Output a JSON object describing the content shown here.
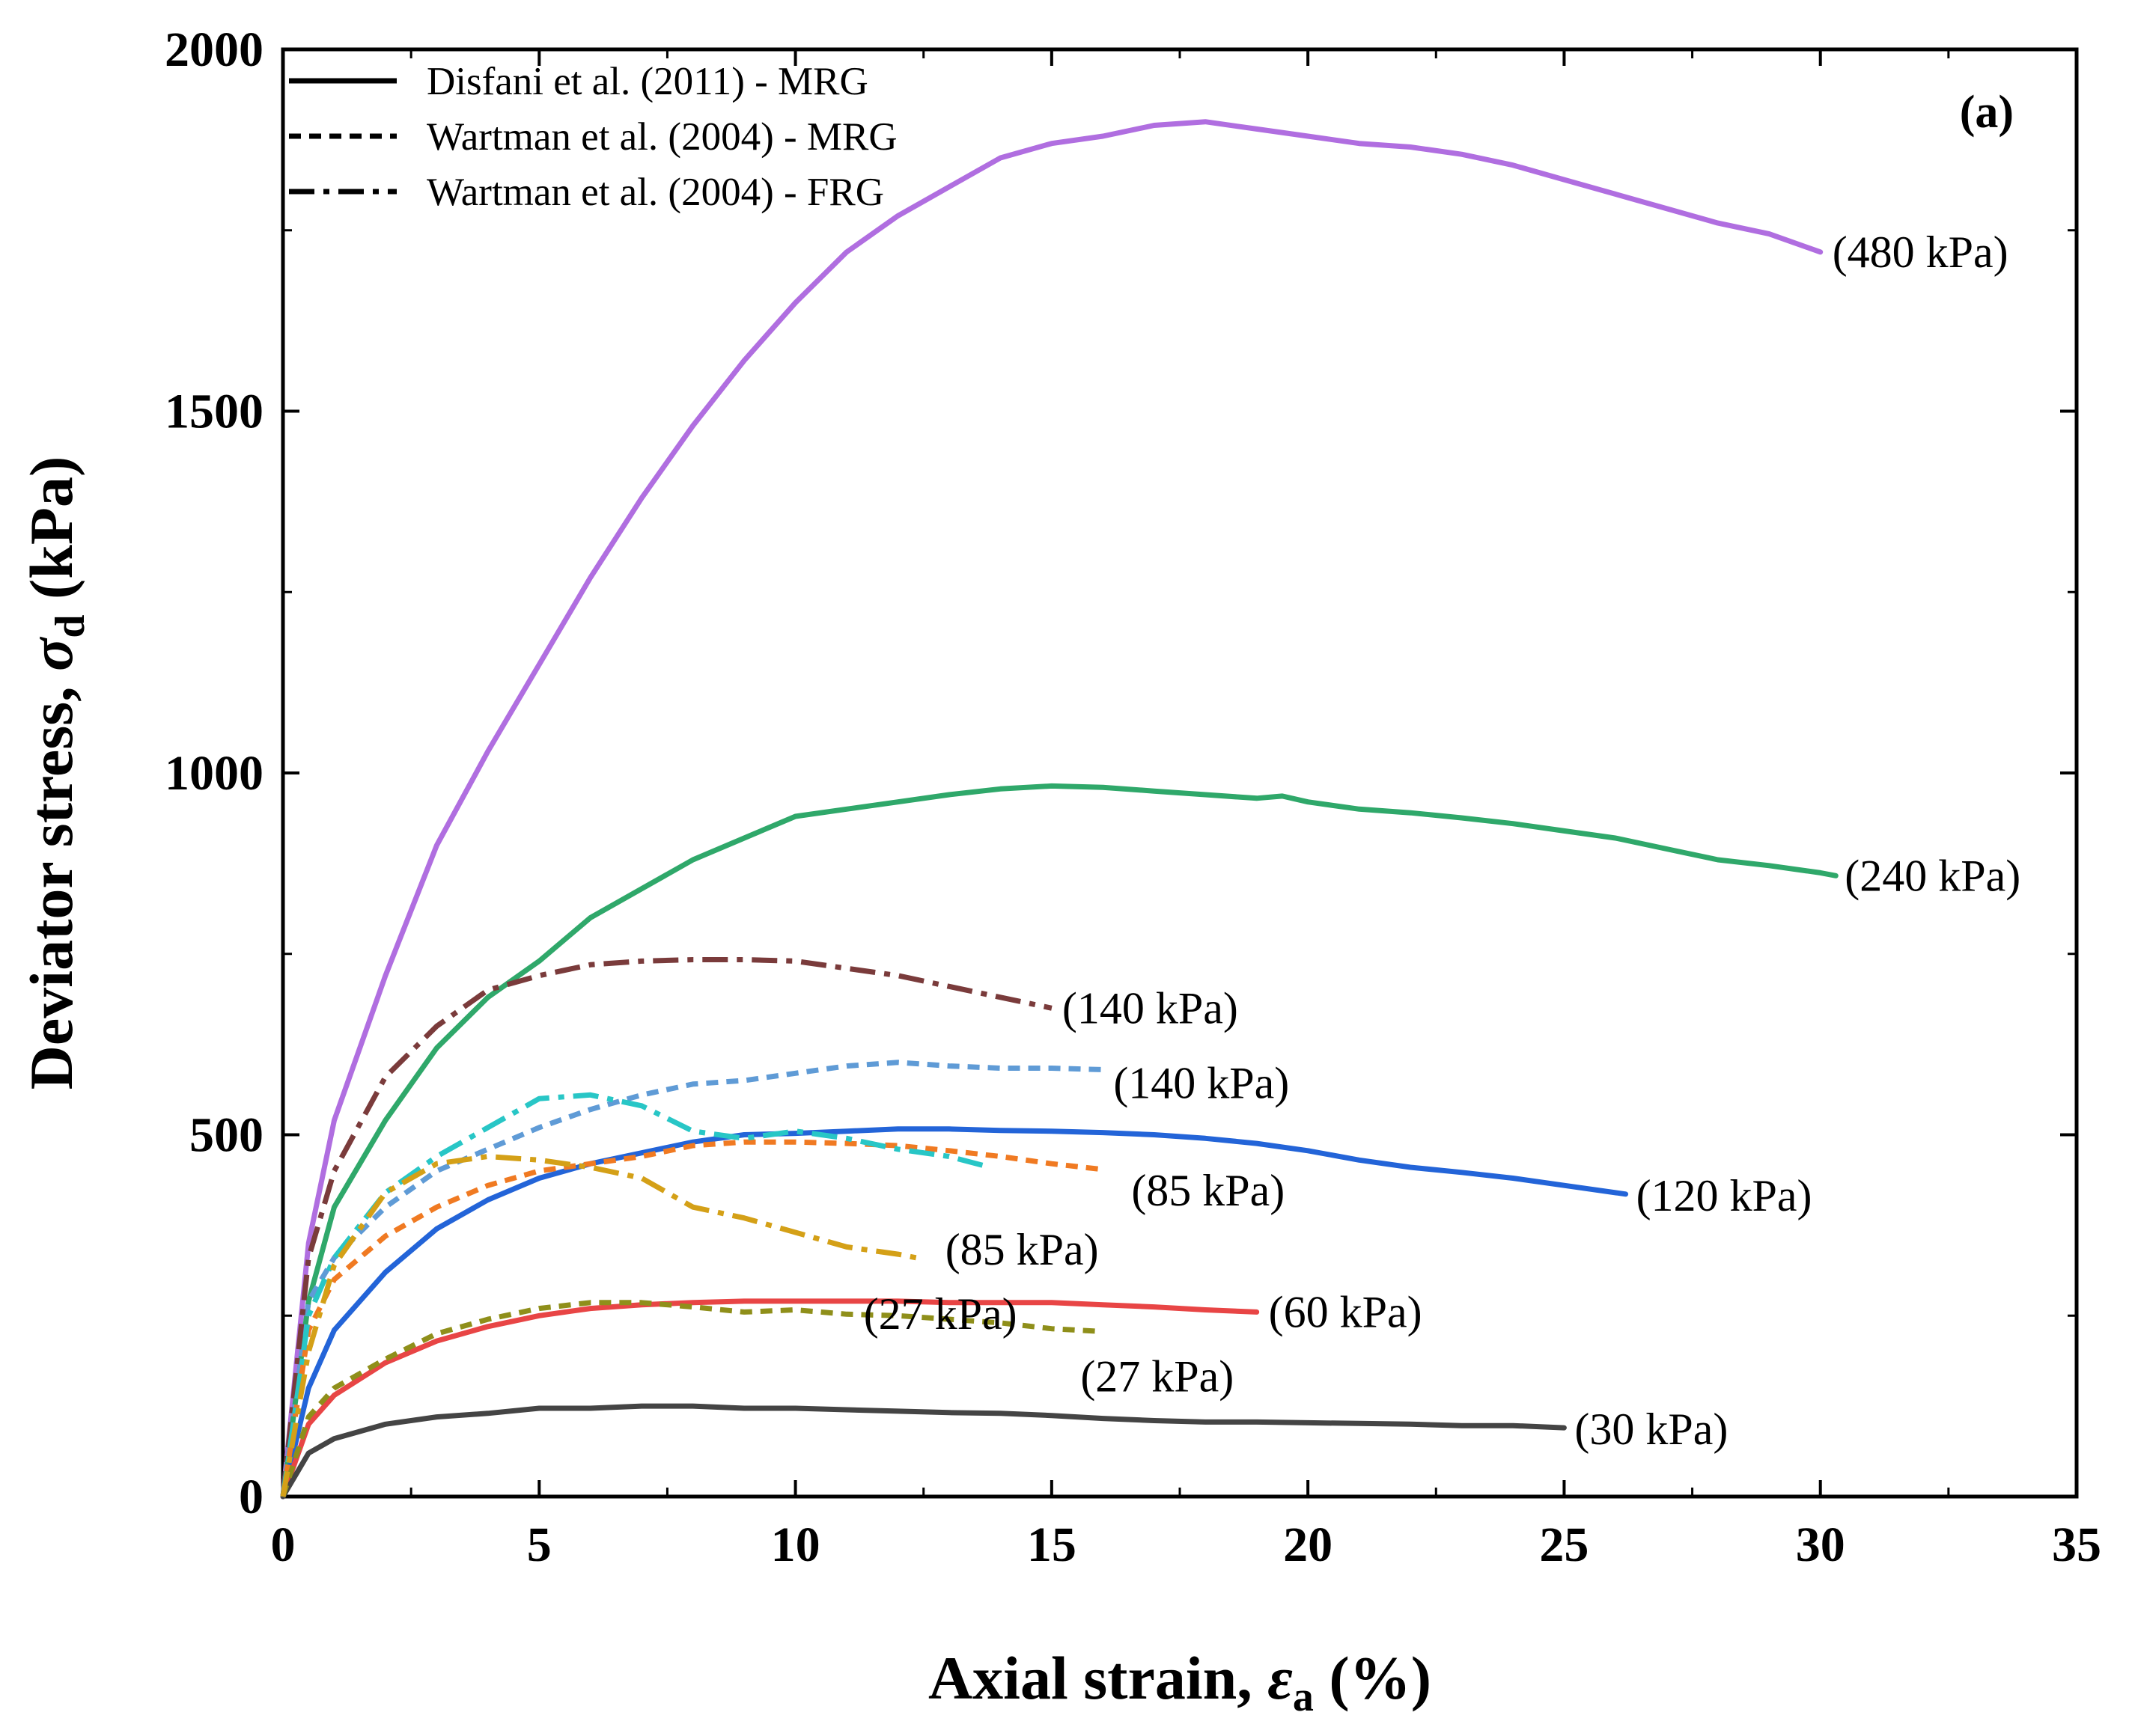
{
  "chart_data": {
    "type": "line",
    "panel_label": "(a)",
    "xlabel": {
      "prefix": "Axial strain, ",
      "symbol": "ε",
      "sub": "a",
      "suffix": " (%)"
    },
    "ylabel": {
      "prefix": "Deviator stress, ",
      "symbol": "σ",
      "sub": "d",
      "suffix": " (kPa)"
    },
    "xlim": [
      0,
      35
    ],
    "ylim": [
      0,
      2000
    ],
    "xticks": [
      0,
      5,
      10,
      15,
      20,
      25,
      30,
      35
    ],
    "yticks": [
      0,
      500,
      1000,
      1500,
      2000
    ],
    "legend": {
      "position": "top-left",
      "entries": [
        {
          "label": "Disfani et al. (2011) - MRG",
          "dash": "solid"
        },
        {
          "label": "Wartman et al. (2004) - MRG",
          "dash": "dashed"
        },
        {
          "label": "Wartman et al. (2004) - FRG",
          "dash": "dashdot"
        }
      ]
    },
    "series": [
      {
        "name": "Disfani 480 kPa",
        "label": "(480 kPa)",
        "color": "#b06ee0",
        "dash": "solid",
        "x": [
          0,
          0.5,
          1,
          2,
          3,
          4,
          5,
          6,
          7,
          8,
          9,
          10,
          11,
          12,
          13,
          14,
          15,
          16,
          17,
          18,
          19,
          20,
          21,
          22,
          23,
          24,
          25,
          26,
          27,
          28,
          29,
          30
        ],
        "y": [
          0,
          350,
          520,
          720,
          900,
          1030,
          1150,
          1270,
          1380,
          1480,
          1570,
          1650,
          1720,
          1770,
          1810,
          1850,
          1870,
          1880,
          1895,
          1900,
          1890,
          1880,
          1870,
          1865,
          1855,
          1840,
          1820,
          1800,
          1780,
          1760,
          1745,
          1720
        ]
      },
      {
        "name": "Disfani 240 kPa",
        "label": "(240 kPa)",
        "color": "#2fa86a",
        "dash": "solid",
        "x": [
          0,
          0.5,
          1,
          2,
          3,
          4,
          5,
          6,
          7,
          8,
          9,
          10,
          11,
          12,
          13,
          14,
          15,
          16,
          17,
          18,
          19,
          19.5,
          20,
          21,
          22,
          23,
          24,
          25,
          26,
          27,
          28,
          29,
          30,
          30.3
        ],
        "y": [
          0,
          270,
          400,
          520,
          620,
          690,
          740,
          800,
          840,
          880,
          910,
          940,
          950,
          960,
          970,
          978,
          982,
          980,
          975,
          970,
          965,
          968,
          960,
          950,
          945,
          938,
          930,
          920,
          910,
          895,
          880,
          872,
          862,
          858
        ]
      },
      {
        "name": "Disfani 120 kPa",
        "label": "(120 kPa)",
        "color": "#2364d8",
        "dash": "solid",
        "x": [
          0,
          0.5,
          1,
          2,
          3,
          4,
          5,
          6,
          7,
          8,
          9,
          10,
          11,
          12,
          13,
          14,
          15,
          16,
          17,
          18,
          19,
          20,
          21,
          22,
          23,
          24,
          25,
          26.2
        ],
        "y": [
          0,
          150,
          230,
          310,
          370,
          410,
          440,
          460,
          475,
          490,
          500,
          502,
          505,
          508,
          508,
          506,
          505,
          503,
          500,
          495,
          488,
          478,
          465,
          455,
          448,
          440,
          430,
          418
        ]
      },
      {
        "name": "Disfani 60 kPa",
        "label": "(60 kPa)",
        "color": "#e84545",
        "dash": "solid",
        "x": [
          0,
          0.5,
          1,
          2,
          3,
          4,
          5,
          6,
          7,
          8,
          9,
          10,
          11,
          12,
          13,
          14,
          15,
          16,
          17,
          18,
          19
        ],
        "y": [
          0,
          100,
          140,
          185,
          215,
          235,
          250,
          260,
          265,
          268,
          270,
          270,
          270,
          270,
          268,
          268,
          268,
          265,
          262,
          258,
          255
        ]
      },
      {
        "name": "Disfani 30 kPa",
        "label": "(30 kPa)",
        "color": "#444444",
        "dash": "solid",
        "x": [
          0,
          0.5,
          1,
          2,
          3,
          4,
          5,
          6,
          7,
          8,
          9,
          10,
          11,
          12,
          13,
          14,
          15,
          16,
          17,
          18,
          19,
          20,
          21,
          22,
          23,
          24,
          25
        ],
        "y": [
          0,
          60,
          80,
          100,
          110,
          115,
          122,
          122,
          125,
          125,
          122,
          122,
          120,
          118,
          116,
          115,
          112,
          108,
          105,
          103,
          103,
          102,
          101,
          100,
          98,
          98,
          95
        ]
      },
      {
        "name": "Wartman MRG 140 kPa",
        "label": "(140 kPa)",
        "color": "#5f9bd6",
        "dash": "dashed",
        "x": [
          0,
          0.5,
          1,
          2,
          3,
          4,
          5,
          6,
          7,
          8,
          9,
          10,
          11,
          12,
          13,
          14,
          15,
          16
        ],
        "y": [
          0,
          270,
          330,
          400,
          450,
          480,
          510,
          535,
          555,
          570,
          575,
          585,
          595,
          600,
          595,
          592,
          592,
          590
        ]
      },
      {
        "name": "Wartman MRG 85 kPa",
        "label": "(85 kPa)",
        "color": "#f07a22",
        "dash": "dashed",
        "x": [
          0,
          0.5,
          1,
          2,
          3,
          4,
          5,
          6,
          7,
          8,
          9,
          10,
          11,
          12,
          13,
          14,
          15,
          16
        ],
        "y": [
          0,
          230,
          300,
          360,
          400,
          430,
          450,
          460,
          470,
          485,
          490,
          490,
          488,
          485,
          478,
          470,
          460,
          452
        ]
      },
      {
        "name": "Wartman MRG 27 kPa",
        "label": "(27 kPa)",
        "color": "#8f8f1a",
        "dash": "dashed",
        "x": [
          0,
          0.5,
          1,
          2,
          3,
          4,
          5,
          6,
          7,
          8,
          9,
          10,
          11,
          12,
          13,
          14,
          15,
          16
        ],
        "y": [
          0,
          110,
          150,
          190,
          225,
          245,
          260,
          268,
          268,
          262,
          255,
          258,
          252,
          250,
          245,
          240,
          232,
          228
        ]
      },
      {
        "name": "Wartman FRG 140 kPa",
        "label": "(140 kPa)",
        "color": "#7a3b3b",
        "dash": "dashdot",
        "x": [
          0,
          0.5,
          1,
          2,
          3,
          4,
          5,
          6,
          7,
          8,
          9,
          10,
          11,
          12,
          13,
          14,
          15
        ],
        "y": [
          0,
          330,
          450,
          580,
          650,
          700,
          720,
          735,
          740,
          742,
          742,
          740,
          730,
          720,
          705,
          690,
          675
        ]
      },
      {
        "name": "Wartman FRG 85 kPa",
        "label": "(85 kPa)",
        "color": "#28c6c6",
        "dash": "dashdot",
        "x": [
          0,
          0.5,
          1,
          2,
          3,
          4,
          5,
          6,
          7,
          8,
          9,
          10,
          11,
          12,
          13,
          13.8
        ],
        "y": [
          0,
          250,
          330,
          420,
          470,
          510,
          550,
          555,
          540,
          505,
          495,
          505,
          495,
          480,
          470,
          455
        ]
      },
      {
        "name": "Wartman FRG 27 kPa",
        "label": "(27 kPa)",
        "color": "#d4a017",
        "dash": "dashdot",
        "x": [
          0,
          0.5,
          1,
          2,
          3,
          4,
          5,
          6,
          7,
          8,
          9,
          10,
          11,
          12,
          12.5
        ],
        "y": [
          0,
          200,
          320,
          420,
          460,
          470,
          465,
          455,
          440,
          400,
          385,
          365,
          345,
          335,
          328
        ]
      }
    ]
  }
}
